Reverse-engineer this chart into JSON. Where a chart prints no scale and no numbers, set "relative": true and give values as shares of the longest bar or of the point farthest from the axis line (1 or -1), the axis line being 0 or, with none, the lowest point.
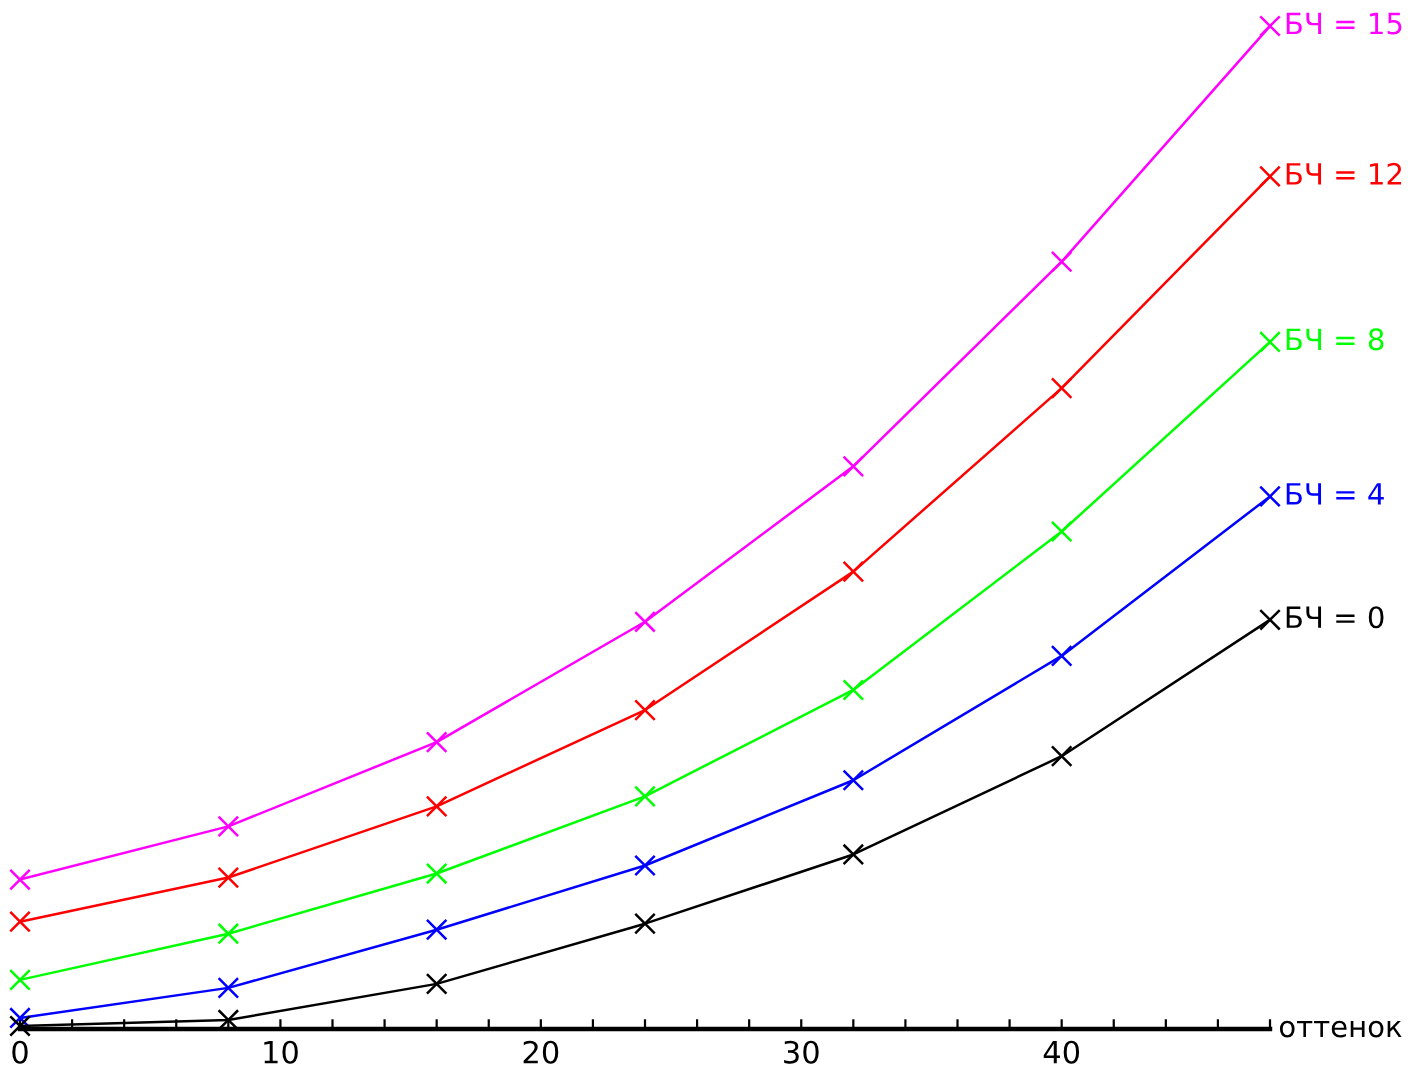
{
  "chart_data": {
    "type": "line",
    "relative": true,
    "xlabel": "оттенок",
    "marker": "cross",
    "line_style": "solid",
    "grid": false,
    "legend": false,
    "tick_labels": "x",
    "x": [
      0,
      8,
      16,
      24,
      32,
      40,
      48
    ],
    "xlim": [
      0,
      48
    ],
    "xticks": [
      0,
      {
        "value": 2,
        "label": null
      },
      {
        "value": 4,
        "label": null
      },
      {
        "value": 6,
        "label": null
      },
      {
        "value": 8,
        "label": null
      },
      10,
      {
        "value": 12,
        "label": null
      },
      {
        "value": 14,
        "label": null
      },
      {
        "value": 16,
        "label": null
      },
      {
        "value": 18,
        "label": null
      },
      20,
      {
        "value": 22,
        "label": null
      },
      {
        "value": 24,
        "label": null
      },
      {
        "value": 26,
        "label": null
      },
      {
        "value": 28,
        "label": null
      },
      30,
      {
        "value": 32,
        "label": null
      },
      {
        "value": 34,
        "label": null
      },
      {
        "value": 36,
        "label": null
      },
      {
        "value": 38,
        "label": null
      },
      40,
      {
        "value": 42,
        "label": null
      },
      {
        "value": 44,
        "label": null
      },
      {
        "value": 46,
        "label": null
      },
      {
        "value": 48,
        "label": null
      }
    ],
    "series": [
      {
        "name": "БЧ = 15",
        "color": "#ff00ff",
        "values": [
          0.149,
          0.202,
          0.286,
          0.406,
          0.561,
          0.765,
          1.0
        ]
      },
      {
        "name": "БЧ = 12",
        "color": "#ff0000",
        "values": [
          0.107,
          0.151,
          0.222,
          0.318,
          0.456,
          0.639,
          0.85
        ]
      },
      {
        "name": "БЧ = 8",
        "color": "#00ff00",
        "values": [
          0.049,
          0.095,
          0.155,
          0.232,
          0.338,
          0.496,
          0.685
        ]
      },
      {
        "name": "БЧ = 4",
        "color": "#0000ff",
        "values": [
          0.011,
          0.041,
          0.099,
          0.163,
          0.248,
          0.372,
          0.531
        ]
      },
      {
        "name": "БЧ = 0",
        "color": "#000000",
        "values": [
          0.003,
          0.009,
          0.045,
          0.105,
          0.174,
          0.272,
          0.408
        ]
      }
    ]
  }
}
